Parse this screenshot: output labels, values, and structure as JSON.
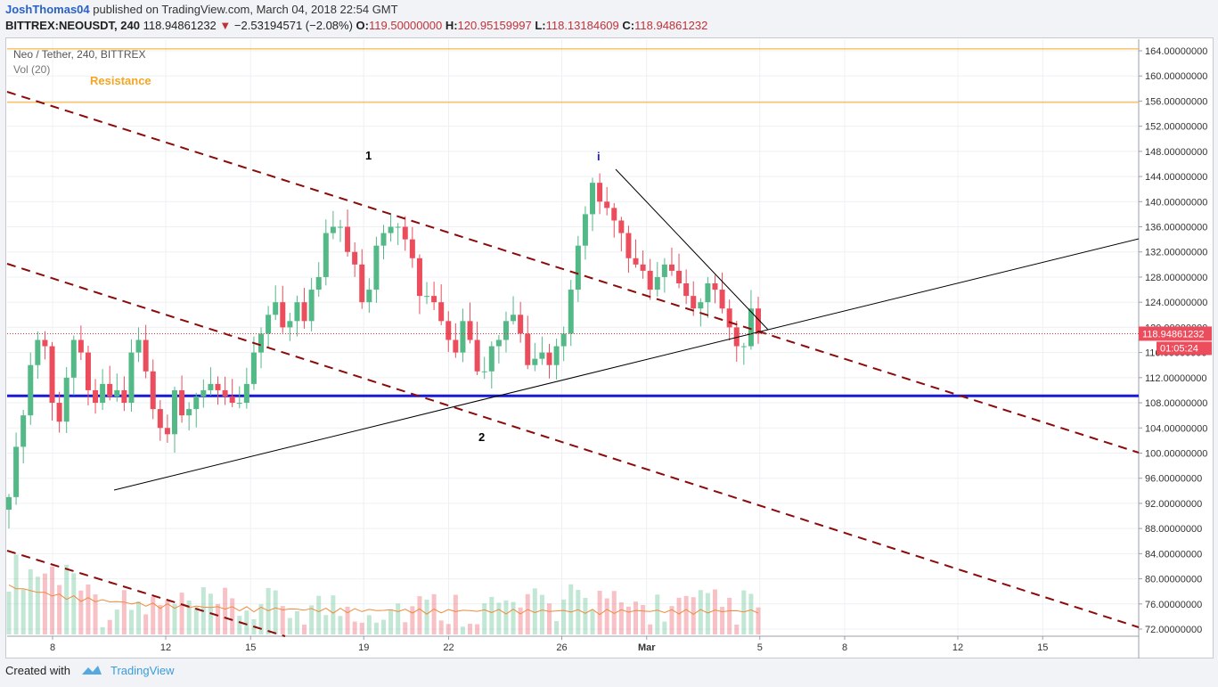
{
  "header": {
    "author": "JoshThomas04",
    "published": "published on TradingView.com, March 04, 2018 22:54 GMT",
    "symbol": "BITTREX:NEOUSDT, 240",
    "last": "118.94861232",
    "arrow": "▼",
    "change": "−2.53194571 (−2.08%)",
    "o_label": "O:",
    "o_val": "119.50000000",
    "h_label": "H:",
    "h_val": "120.95159997",
    "l_label": "L:",
    "l_val": "118.13184609",
    "c_label": "C:",
    "c_val": "118.94861232"
  },
  "footer": {
    "created": "Created with",
    "brand": "TradingView"
  },
  "colors": {
    "up": "#53b987",
    "down": "#eb4d5c",
    "blue_line": "#1a1ad6",
    "channel": "#8b0a0a",
    "resistance": "#f5a623"
  },
  "chart_data": {
    "type": "candlestick",
    "title": "Neo / Tether, 240, BITTREX",
    "indicator": "Vol (20)",
    "price_axis": {
      "min": 72,
      "max": 164,
      "step": 4,
      "decimals": 8
    },
    "x_ticks": [
      "8",
      "12",
      "15",
      "19",
      "22",
      "26",
      "Mar",
      "5",
      "8",
      "12",
      "15"
    ],
    "last_price_label": "118.94861232",
    "countdown_label": "01:05:24",
    "annotations": [
      {
        "text": "Resistance"
      },
      {
        "text": "1"
      },
      {
        "text": "i"
      },
      {
        "text": "2"
      }
    ],
    "horizontal_levels": [
      {
        "name": "resistance-top",
        "price": 164.3
      },
      {
        "name": "resistance-bottom",
        "price": 155.8
      },
      {
        "name": "support-blue",
        "price": 109.1
      }
    ],
    "candles_4h_close_series": [
      93,
      101,
      106,
      114,
      118,
      117,
      108,
      105,
      112,
      118,
      116,
      110,
      108,
      111,
      109,
      110,
      108,
      116,
      118,
      113,
      107,
      104,
      103,
      110,
      106,
      107,
      109,
      110,
      111,
      110,
      109,
      108,
      108,
      111,
      116,
      119,
      122,
      124,
      120,
      121,
      124,
      121,
      126,
      128,
      135,
      136,
      136,
      132,
      130,
      124,
      126,
      133,
      135,
      136,
      136,
      134,
      131,
      125,
      125,
      124,
      121,
      118,
      116,
      121,
      118,
      113,
      113,
      117,
      118,
      121,
      122,
      119,
      114,
      115,
      116,
      114,
      117,
      119,
      126,
      133,
      138,
      143,
      140,
      139,
      137,
      135,
      131,
      130,
      129,
      126,
      128,
      130,
      129,
      127,
      125,
      123,
      124,
      127,
      126,
      123,
      120,
      117,
      117,
      123,
      119
    ]
  }
}
